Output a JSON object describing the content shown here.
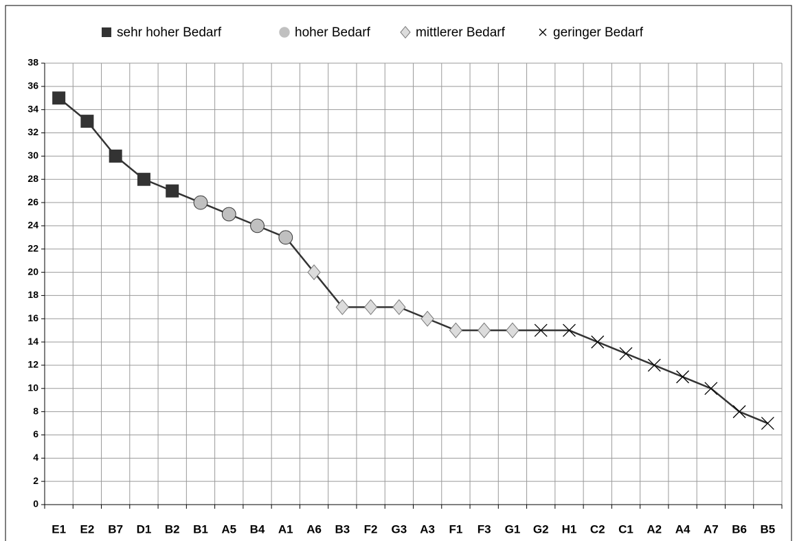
{
  "chart_data": {
    "type": "line",
    "categories": [
      "E1",
      "E2",
      "B7",
      "D1",
      "B2",
      "B1",
      "A5",
      "B4",
      "A1",
      "A6",
      "B3",
      "F2",
      "G3",
      "A3",
      "F1",
      "F3",
      "G1",
      "G2",
      "H1",
      "C2",
      "C1",
      "A2",
      "A4",
      "A7",
      "B6",
      "B5"
    ],
    "series": [
      {
        "name": "sehr hoher Bedarf",
        "marker": "square",
        "color": "#333333",
        "values": [
          35,
          33,
          30,
          28,
          27,
          null,
          null,
          null,
          null,
          null,
          null,
          null,
          null,
          null,
          null,
          null,
          null,
          null,
          null,
          null,
          null,
          null,
          null,
          null,
          null,
          null
        ]
      },
      {
        "name": "hoher Bedarf",
        "marker": "circle",
        "color": "#c0c0c0",
        "values": [
          null,
          null,
          null,
          null,
          null,
          26,
          25,
          24,
          23,
          null,
          null,
          null,
          null,
          null,
          null,
          null,
          null,
          null,
          null,
          null,
          null,
          null,
          null,
          null,
          null,
          null
        ]
      },
      {
        "name": "mittlerer Bedarf",
        "marker": "diamond",
        "color": "#dcdcdc",
        "values": [
          null,
          null,
          null,
          null,
          null,
          null,
          null,
          null,
          null,
          20,
          17,
          17,
          17,
          16,
          15,
          15,
          15,
          null,
          null,
          null,
          null,
          null,
          null,
          null,
          null,
          null
        ]
      },
      {
        "name": "geringer Bedarf",
        "marker": "x",
        "color": "#000000",
        "values": [
          null,
          null,
          null,
          null,
          null,
          null,
          null,
          null,
          null,
          null,
          null,
          null,
          null,
          null,
          null,
          null,
          null,
          15,
          15,
          14,
          13,
          12,
          11,
          10,
          8,
          7
        ]
      }
    ],
    "ylim": [
      0,
      38
    ],
    "yticks": [
      0,
      2,
      4,
      6,
      8,
      10,
      12,
      14,
      16,
      18,
      20,
      22,
      24,
      26,
      28,
      30,
      32,
      34,
      36,
      38
    ],
    "grid": true
  }
}
